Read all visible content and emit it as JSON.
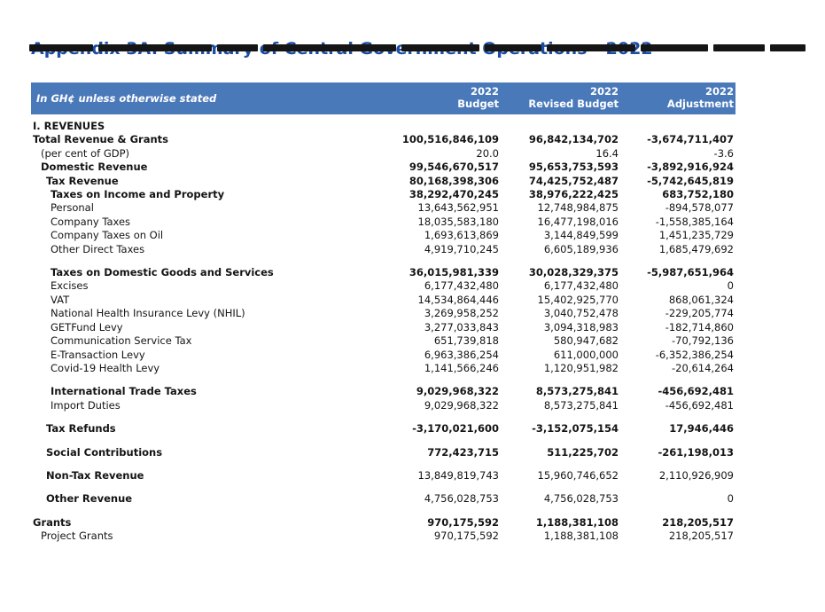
{
  "page": {
    "title": "Appendix 3A: Summary of Central Government Operations - 2022"
  },
  "table": {
    "unit_label": "In GH¢ unless otherwise stated",
    "columns": [
      {
        "year": "2022",
        "label": "Budget"
      },
      {
        "year": "2022",
        "label": "Revised Budget"
      },
      {
        "year": "2022",
        "label": "Adjustment"
      }
    ],
    "rows": [
      {
        "label": "I. REVENUES",
        "indent": 0,
        "bold": true,
        "budget": "",
        "revised": "",
        "adjustment": ""
      },
      {
        "label": "Total Revenue & Grants",
        "indent": 0,
        "bold": true,
        "budget": "100,516,846,109",
        "revised": "96,842,134,702",
        "adjustment": "-3,674,711,407"
      },
      {
        "label": "(per cent of GDP)",
        "indent": 1,
        "bold": false,
        "budget": "20.0",
        "revised": "16.4",
        "adjustment": "-3.6"
      },
      {
        "label": "Domestic Revenue",
        "indent": 1,
        "bold": true,
        "budget": "99,546,670,517",
        "revised": "95,653,753,593",
        "adjustment": "-3,892,916,924"
      },
      {
        "label": "Tax Revenue",
        "indent": 2,
        "bold": true,
        "budget": "80,168,398,306",
        "revised": "74,425,752,487",
        "adjustment": "-5,742,645,819"
      },
      {
        "label": "Taxes on Income and Property",
        "indent": 3,
        "bold": true,
        "budget": "38,292,470,245",
        "revised": "38,976,222,425",
        "adjustment": "683,752,180"
      },
      {
        "label": "Personal",
        "indent": 3,
        "bold": false,
        "budget": "13,643,562,951",
        "revised": "12,748,984,875",
        "adjustment": "-894,578,077"
      },
      {
        "label": "Company Taxes",
        "indent": 3,
        "bold": false,
        "budget": "18,035,583,180",
        "revised": "16,477,198,016",
        "adjustment": "-1,558,385,164"
      },
      {
        "label": "Company Taxes on Oil",
        "indent": 3,
        "bold": false,
        "budget": "1,693,613,869",
        "revised": "3,144,849,599",
        "adjustment": "1,451,235,729"
      },
      {
        "label": "Other Direct Taxes",
        "indent": 3,
        "bold": false,
        "budget": "4,919,710,245",
        "revised": "6,605,189,936",
        "adjustment": "1,685,479,692"
      },
      {
        "label": "Taxes on Domestic Goods and Services",
        "indent": 3,
        "bold": true,
        "space": true,
        "budget": "36,015,981,339",
        "revised": "30,028,329,375",
        "adjustment": "-5,987,651,964"
      },
      {
        "label": "Excises",
        "indent": 3,
        "bold": false,
        "budget": "6,177,432,480",
        "revised": "6,177,432,480",
        "adjustment": "0"
      },
      {
        "label": "VAT",
        "indent": 3,
        "bold": false,
        "budget": "14,534,864,446",
        "revised": "15,402,925,770",
        "adjustment": "868,061,324"
      },
      {
        "label": "National Health Insurance Levy (NHIL)",
        "indent": 3,
        "bold": false,
        "budget": "3,269,958,252",
        "revised": "3,040,752,478",
        "adjustment": "-229,205,774"
      },
      {
        "label": "GETFund Levy",
        "indent": 3,
        "bold": false,
        "budget": "3,277,033,843",
        "revised": "3,094,318,983",
        "adjustment": "-182,714,860"
      },
      {
        "label": "Communication Service Tax",
        "indent": 3,
        "bold": false,
        "budget": "651,739,818",
        "revised": "580,947,682",
        "adjustment": "-70,792,136"
      },
      {
        "label": "E-Transaction Levy",
        "indent": 3,
        "bold": false,
        "budget": "6,963,386,254",
        "revised": "611,000,000",
        "adjustment": "-6,352,386,254"
      },
      {
        "label": "Covid-19 Health Levy",
        "indent": 3,
        "bold": false,
        "budget": "1,141,566,246",
        "revised": "1,120,951,982",
        "adjustment": "-20,614,264"
      },
      {
        "label": "International Trade Taxes",
        "indent": 3,
        "bold": true,
        "space": true,
        "budget": "9,029,968,322",
        "revised": "8,573,275,841",
        "adjustment": "-456,692,481"
      },
      {
        "label": "Import Duties",
        "indent": 3,
        "bold": false,
        "budget": "9,029,968,322",
        "revised": "8,573,275,841",
        "adjustment": "-456,692,481"
      },
      {
        "label": "Tax Refunds",
        "indent": 2,
        "bold": true,
        "space": true,
        "budget": "-3,170,021,600",
        "revised": "-3,152,075,154",
        "adjustment": "17,946,446"
      },
      {
        "label": "Social Contributions",
        "indent": 2,
        "bold": true,
        "space": true,
        "budget": "772,423,715",
        "revised": "511,225,702",
        "adjustment": "-261,198,013"
      },
      {
        "label": "Non-Tax Revenue",
        "indent": 2,
        "bold": true,
        "space": true,
        "values_bold": false,
        "budget": "13,849,819,743",
        "revised": "15,960,746,652",
        "adjustment": "2,110,926,909"
      },
      {
        "label": "Other Revenue",
        "indent": 2,
        "bold": true,
        "space": true,
        "values_bold": false,
        "budget": "4,756,028,753",
        "revised": "4,756,028,753",
        "adjustment": "0"
      },
      {
        "label": "Grants",
        "indent": 0,
        "bold": true,
        "space": true,
        "budget": "970,175,592",
        "revised": "1,188,381,108",
        "adjustment": "218,205,517"
      },
      {
        "label": "Project Grants",
        "indent": 1,
        "bold": false,
        "budget": "970,175,592",
        "revised": "1,188,381,108",
        "adjustment": "218,205,517"
      }
    ]
  }
}
